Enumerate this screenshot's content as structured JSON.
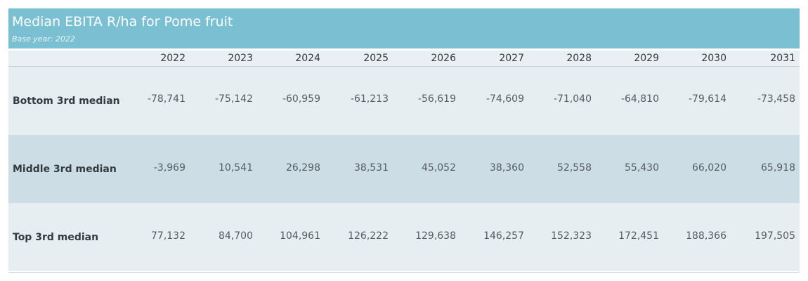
{
  "header": {
    "title": "Median EBITA R/ha for Pome fruit",
    "subtitle": "Base year: 2022"
  },
  "chart_data": {
    "type": "table",
    "title": "Median EBITA R/ha for Pome fruit",
    "subtitle": "Base year: 2022",
    "columns": [
      "2022",
      "2023",
      "2024",
      "2025",
      "2026",
      "2027",
      "2028",
      "2029",
      "2030",
      "2031"
    ],
    "rows": [
      {
        "label": "Bottom 3rd median",
        "values": [
          "-78,741",
          "-75,142",
          "-60,959",
          "-61,213",
          "-56,619",
          "-74,609",
          "-71,040",
          "-64,810",
          "-79,614",
          "-73,458"
        ]
      },
      {
        "label": "Middle 3rd median",
        "values": [
          "-3,969",
          "10,541",
          "26,298",
          "38,531",
          "45,052",
          "38,360",
          "52,558",
          "55,430",
          "66,020",
          "65,918"
        ]
      },
      {
        "label": "Top 3rd median",
        "values": [
          "77,132",
          "84,700",
          "104,961",
          "126,222",
          "129,638",
          "146,257",
          "152,323",
          "172,451",
          "188,366",
          "197,505"
        ]
      }
    ],
    "colors": {
      "header": "#7abfd2",
      "band_light": "#e7eef2",
      "band_dark": "#ccdde5"
    }
  }
}
